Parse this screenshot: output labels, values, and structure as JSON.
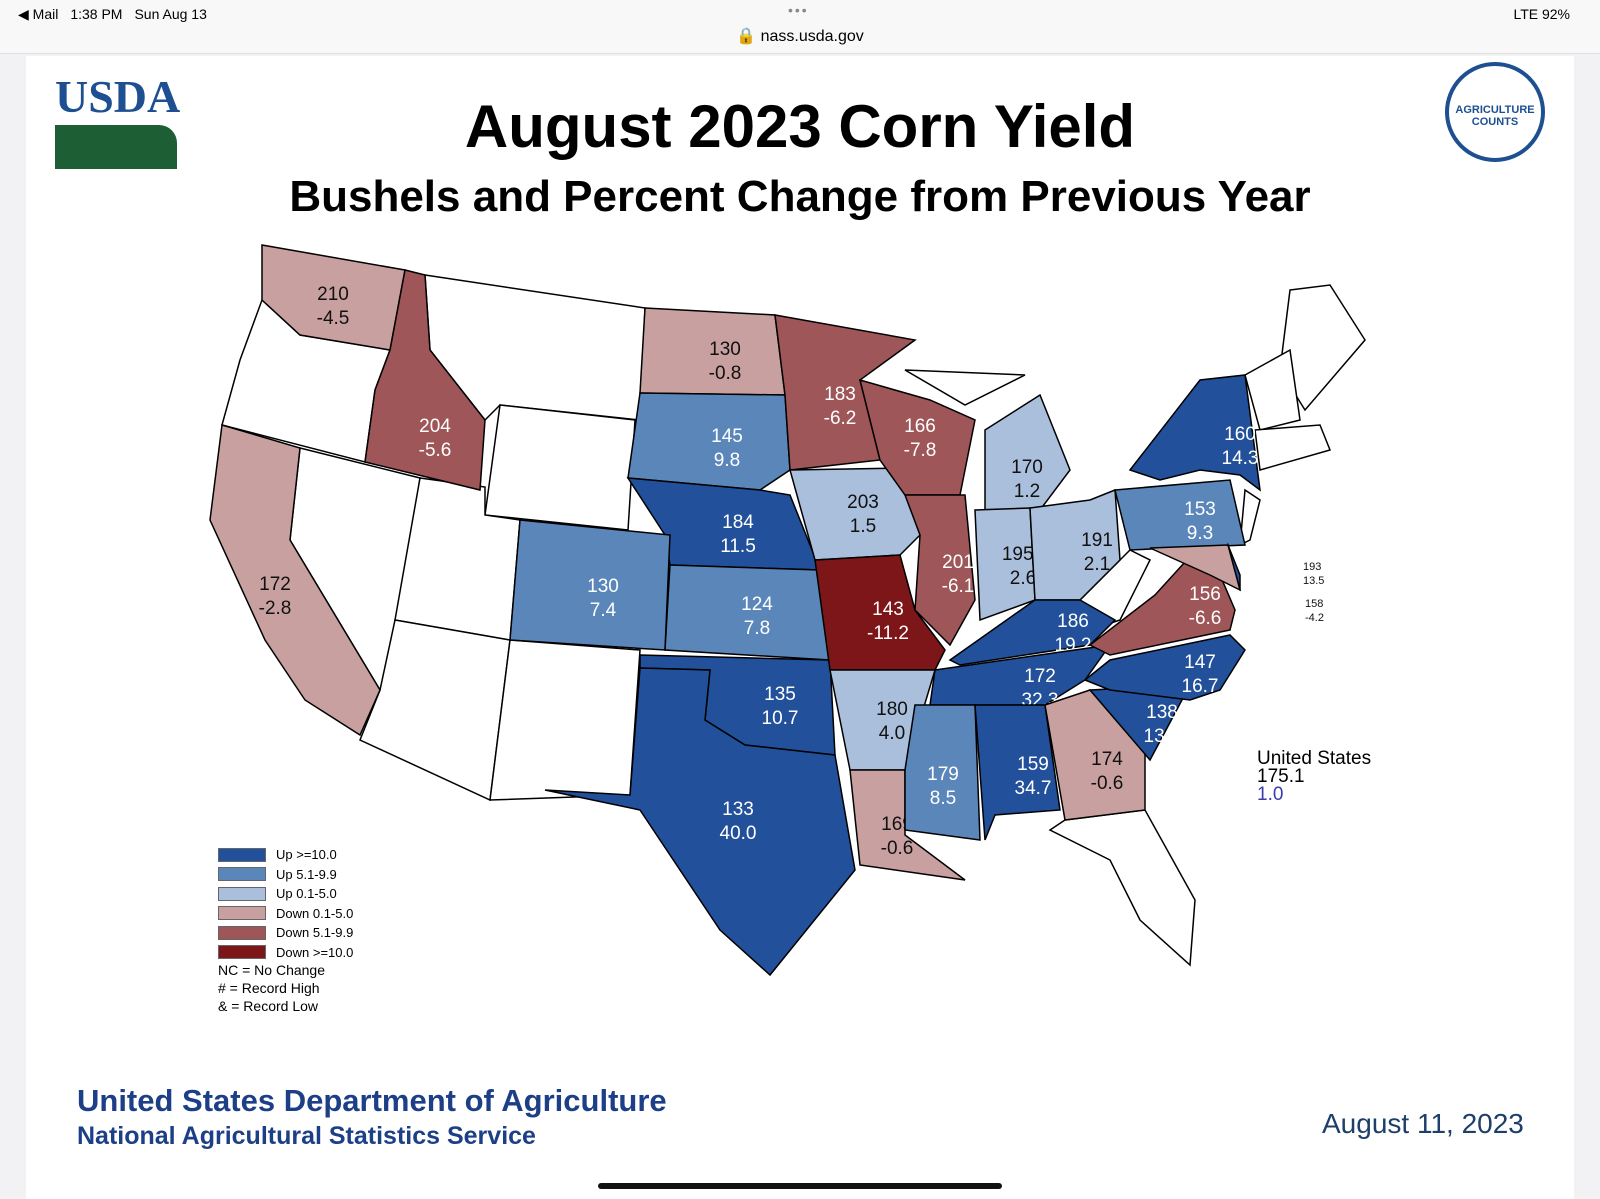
{
  "status_bar": {
    "back": "◀ Mail",
    "time": "1:38 PM",
    "date": "Sun Aug 13",
    "url": "nass.usda.gov",
    "signal": "LTE 92%"
  },
  "header": {
    "title": "August 2023 Corn Yield",
    "subtitle": "Bushels and Percent Change from Previous Year",
    "logo_left": "USDA",
    "logo_right": "AGRICULTURE COUNTS"
  },
  "colors": {
    "up10": "#22509a",
    "up5": "#5b86ba",
    "up0": "#a9bfdc",
    "down0": "#c9a0a0",
    "down5": "#9e5658",
    "down10": "#7c1618",
    "none": "#ffffff"
  },
  "legend": [
    {
      "label": "Up >=10.0",
      "cat": "up10"
    },
    {
      "label": "Up 5.1-9.9",
      "cat": "up5"
    },
    {
      "label": "Up 0.1-5.0",
      "cat": "up0"
    },
    {
      "label": "Down 0.1-5.0",
      "cat": "down0"
    },
    {
      "label": "Down 5.1-9.9",
      "cat": "down5"
    },
    {
      "label": "Down >=10.0",
      "cat": "down10"
    }
  ],
  "legend_notes": [
    "NC = No Change",
    "# = Record High",
    "& = Record Low"
  ],
  "states": [
    {
      "code": "WA",
      "yield": "210",
      "change": "-4.5",
      "cat": "down0"
    },
    {
      "code": "ID",
      "yield": "204",
      "change": "-5.6",
      "cat": "down5"
    },
    {
      "code": "CA",
      "yield": "172",
      "change": "-2.8",
      "cat": "down0"
    },
    {
      "code": "ND",
      "yield": "130",
      "change": "-0.8",
      "cat": "down0"
    },
    {
      "code": "SD",
      "yield": "145",
      "change": "9.8",
      "cat": "up5"
    },
    {
      "code": "NE",
      "yield": "184",
      "change": "11.5",
      "cat": "up10"
    },
    {
      "code": "CO",
      "yield": "130",
      "change": "7.4",
      "cat": "up5"
    },
    {
      "code": "KS",
      "yield": "124",
      "change": "7.8",
      "cat": "up5"
    },
    {
      "code": "OK",
      "yield": "135",
      "change": "10.7",
      "cat": "up10"
    },
    {
      "code": "TX",
      "yield": "133",
      "change": "40.0",
      "cat": "up10"
    },
    {
      "code": "MN",
      "yield": "183",
      "change": "-6.2",
      "cat": "down5"
    },
    {
      "code": "IA",
      "yield": "203",
      "change": "1.5",
      "cat": "up0"
    },
    {
      "code": "MO",
      "yield": "143",
      "change": "-11.2",
      "cat": "down10"
    },
    {
      "code": "AR",
      "yield": "180",
      "change": "4.0",
      "cat": "up0"
    },
    {
      "code": "LA",
      "yield": "169",
      "change": "-0.6",
      "cat": "down0"
    },
    {
      "code": "WI",
      "yield": "166",
      "change": "-7.8",
      "cat": "down5"
    },
    {
      "code": "IL",
      "yield": "201",
      "change": "-6.1",
      "cat": "down5"
    },
    {
      "code": "MI",
      "yield": "170",
      "change": "1.2",
      "cat": "up0"
    },
    {
      "code": "IN",
      "yield": "195#",
      "change": "2.6",
      "cat": "up0"
    },
    {
      "code": "OH",
      "yield": "191",
      "change": "2.1",
      "cat": "up0"
    },
    {
      "code": "KY",
      "yield": "186",
      "change": "19.2",
      "cat": "up10"
    },
    {
      "code": "TN",
      "yield": "172",
      "change": "32.3",
      "cat": "up10"
    },
    {
      "code": "MS",
      "yield": "179",
      "change": "8.5",
      "cat": "up5"
    },
    {
      "code": "AL",
      "yield": "159",
      "change": "34.7",
      "cat": "up10"
    },
    {
      "code": "GA",
      "yield": "174",
      "change": "-0.6",
      "cat": "down0"
    },
    {
      "code": "SC",
      "yield": "138",
      "change": "13.1",
      "cat": "up10"
    },
    {
      "code": "NC",
      "yield": "147",
      "change": "16.7",
      "cat": "up10"
    },
    {
      "code": "VA",
      "yield": "156",
      "change": "-6.6",
      "cat": "down5"
    },
    {
      "code": "PA",
      "yield": "153",
      "change": "9.3",
      "cat": "up5"
    },
    {
      "code": "NY",
      "yield": "160",
      "change": "14.3",
      "cat": "up10"
    },
    {
      "code": "DE",
      "yield": "193",
      "change": "13.5",
      "cat": "up10"
    },
    {
      "code": "MD",
      "yield": "158",
      "change": "-4.2",
      "cat": "down0"
    }
  ],
  "us_total": {
    "label": "United States",
    "yield": "175.1",
    "change": "1.0"
  },
  "footer": {
    "line1": "United States Department of Agriculture",
    "line2": "National Agricultural Statistics Service",
    "date": "August 11, 2023"
  }
}
